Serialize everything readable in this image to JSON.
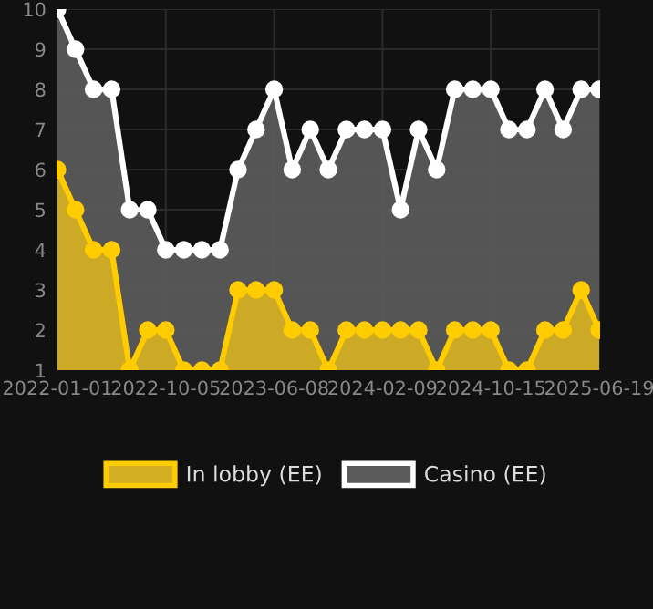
{
  "chart_data": {
    "type": "area",
    "categories": [
      "2022-01-01",
      null,
      null,
      null,
      null,
      null,
      "2022-10-05",
      null,
      null,
      null,
      null,
      null,
      "2023-06-08",
      null,
      null,
      null,
      null,
      null,
      "2024-02-09",
      null,
      null,
      null,
      null,
      null,
      "2024-10-15",
      null,
      null,
      null,
      null,
      null,
      "2025-06-19"
    ],
    "series": [
      {
        "name": "Casino (EE)",
        "color": "#ffffff",
        "values": [
          10,
          9,
          8,
          8,
          5,
          5,
          4,
          4,
          4,
          4,
          6,
          7,
          8,
          6,
          7,
          6,
          7,
          7,
          7,
          5,
          7,
          6,
          8,
          8,
          8,
          7,
          7,
          8,
          7,
          8,
          8
        ]
      },
      {
        "name": "In lobby (EE)",
        "color": "#ffcc00",
        "values": [
          6,
          5,
          4,
          4,
          1,
          2,
          2,
          1,
          1,
          1,
          3,
          3,
          3,
          2,
          2,
          1,
          2,
          2,
          2,
          2,
          2,
          1,
          2,
          2,
          2,
          1,
          1,
          2,
          2,
          3,
          2
        ]
      }
    ],
    "ylim": [
      1,
      10
    ],
    "yticks": [
      1,
      2,
      3,
      4,
      5,
      6,
      7,
      8,
      9,
      10
    ],
    "grid": true,
    "legend": "bottom",
    "marker": "circle",
    "line_style": "solid"
  }
}
